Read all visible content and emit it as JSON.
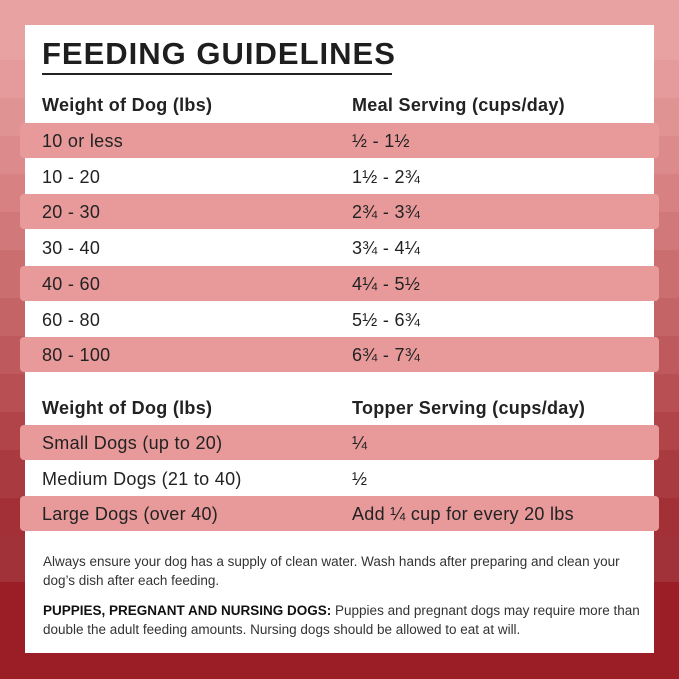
{
  "title": "FEEDING GUIDELINES",
  "meal_table": {
    "headers": [
      "Weight of Dog (lbs)",
      "Meal Serving (cups/day)"
    ],
    "rows": [
      [
        "10 or less",
        "½ - 1½"
      ],
      [
        "10 - 20",
        "1½ - 2¾"
      ],
      [
        "20 - 30",
        "2¾ - 3¾"
      ],
      [
        "30 - 40",
        "3¾ - 4¼"
      ],
      [
        "40 - 60",
        "4¼ - 5½"
      ],
      [
        "60 - 80",
        "5½ - 6¾"
      ],
      [
        "80 - 100",
        "6¾ - 7¾"
      ]
    ]
  },
  "topper_table": {
    "headers": [
      "Weight of Dog (lbs)",
      "Topper Serving (cups/day)"
    ],
    "rows": [
      [
        "Small Dogs (up to 20)",
        "¼"
      ],
      [
        "Medium Dogs (21 to 40)",
        "½"
      ],
      [
        "Large Dogs (over 40)",
        "Add ¼ cup for every 20 lbs"
      ]
    ]
  },
  "notes": {
    "water": "Always ensure your dog has a supply of clean water. Wash hands after preparing and clean your dog’s dish after each feeding.",
    "puppies_label": "PUPPIES, PREGNANT AND NURSING DOGS:",
    "puppies_text": " Puppies and pregnant dogs may require more than double the adult feeding amounts. Nursing dogs should be allowed to eat at will."
  },
  "colors": {
    "highlight": "#e89a9b",
    "background_top": "#e8a2a2",
    "background_bottom": "#9b1d25"
  }
}
